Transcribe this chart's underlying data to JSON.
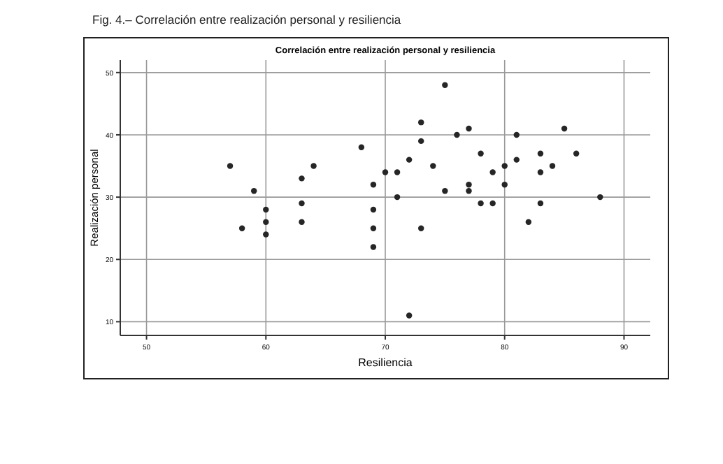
{
  "chart_data": {
    "type": "scatter",
    "title": "Correlación entre realización personal y resiliencia",
    "annotations": [
      "Fig. 4.– Correlación entre realización personal y resiliencia"
    ],
    "xlabel": "Resiliencia",
    "ylabel": "Realización personal",
    "x": [
      57,
      58,
      59,
      60,
      60,
      60,
      63,
      63,
      63,
      64,
      68,
      69,
      69,
      69,
      69,
      70,
      71,
      71,
      72,
      72,
      73,
      73,
      73,
      74,
      75,
      75,
      76,
      77,
      77,
      77,
      78,
      78,
      79,
      79,
      80,
      80,
      81,
      81,
      82,
      83,
      83,
      83,
      84,
      85,
      86,
      88
    ],
    "series": [
      {
        "color": "#262626",
        "values": [
          35,
          25,
          31,
          28,
          26,
          24,
          33,
          29,
          26,
          35,
          38,
          32,
          28,
          25,
          22,
          34,
          34,
          30,
          36,
          11,
          42,
          39,
          25,
          35,
          48,
          31,
          40,
          41,
          32,
          31,
          37,
          29,
          34,
          29,
          35,
          32,
          40,
          36,
          26,
          37,
          34,
          29,
          35,
          41,
          37,
          30
        ]
      }
    ],
    "xlim": [
      47.8,
      92.2
    ],
    "xticks": [
      50,
      60,
      70,
      80,
      90
    ],
    "ylim": [
      7.8,
      52
    ],
    "yticks": [
      10,
      20,
      30,
      40,
      50
    ],
    "grid": true,
    "marker": "circle"
  }
}
